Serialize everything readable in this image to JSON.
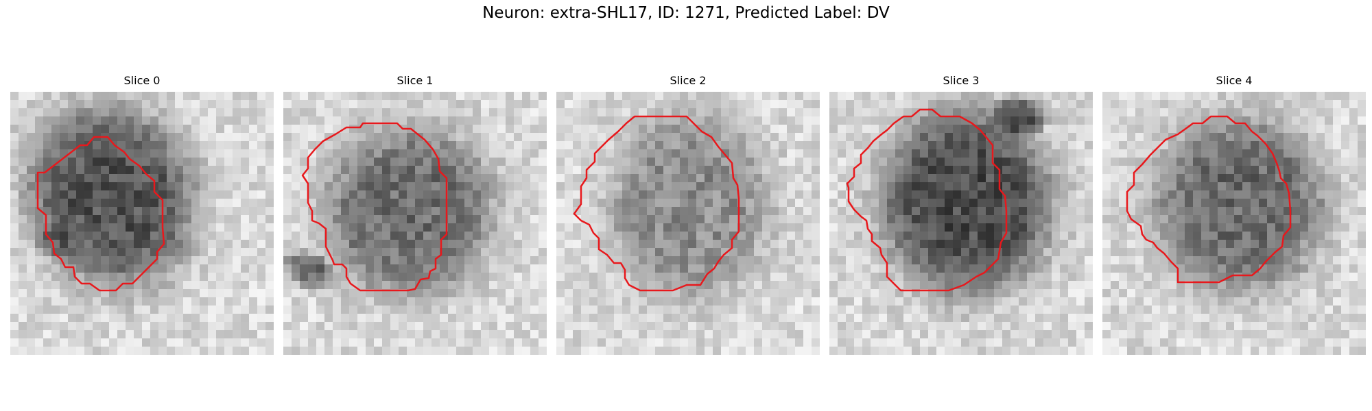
{
  "figure": {
    "title": "Neuron: extra-SHL17, ID: 1271, Predicted Label: DV"
  },
  "panels": [
    {
      "title": "Slice 0"
    },
    {
      "title": "Slice 1"
    },
    {
      "title": "Slice 2"
    },
    {
      "title": "Slice 3"
    },
    {
      "title": "Slice 4"
    }
  ],
  "colors": {
    "contour": "#e8181c",
    "colormap": "grayscale"
  }
}
